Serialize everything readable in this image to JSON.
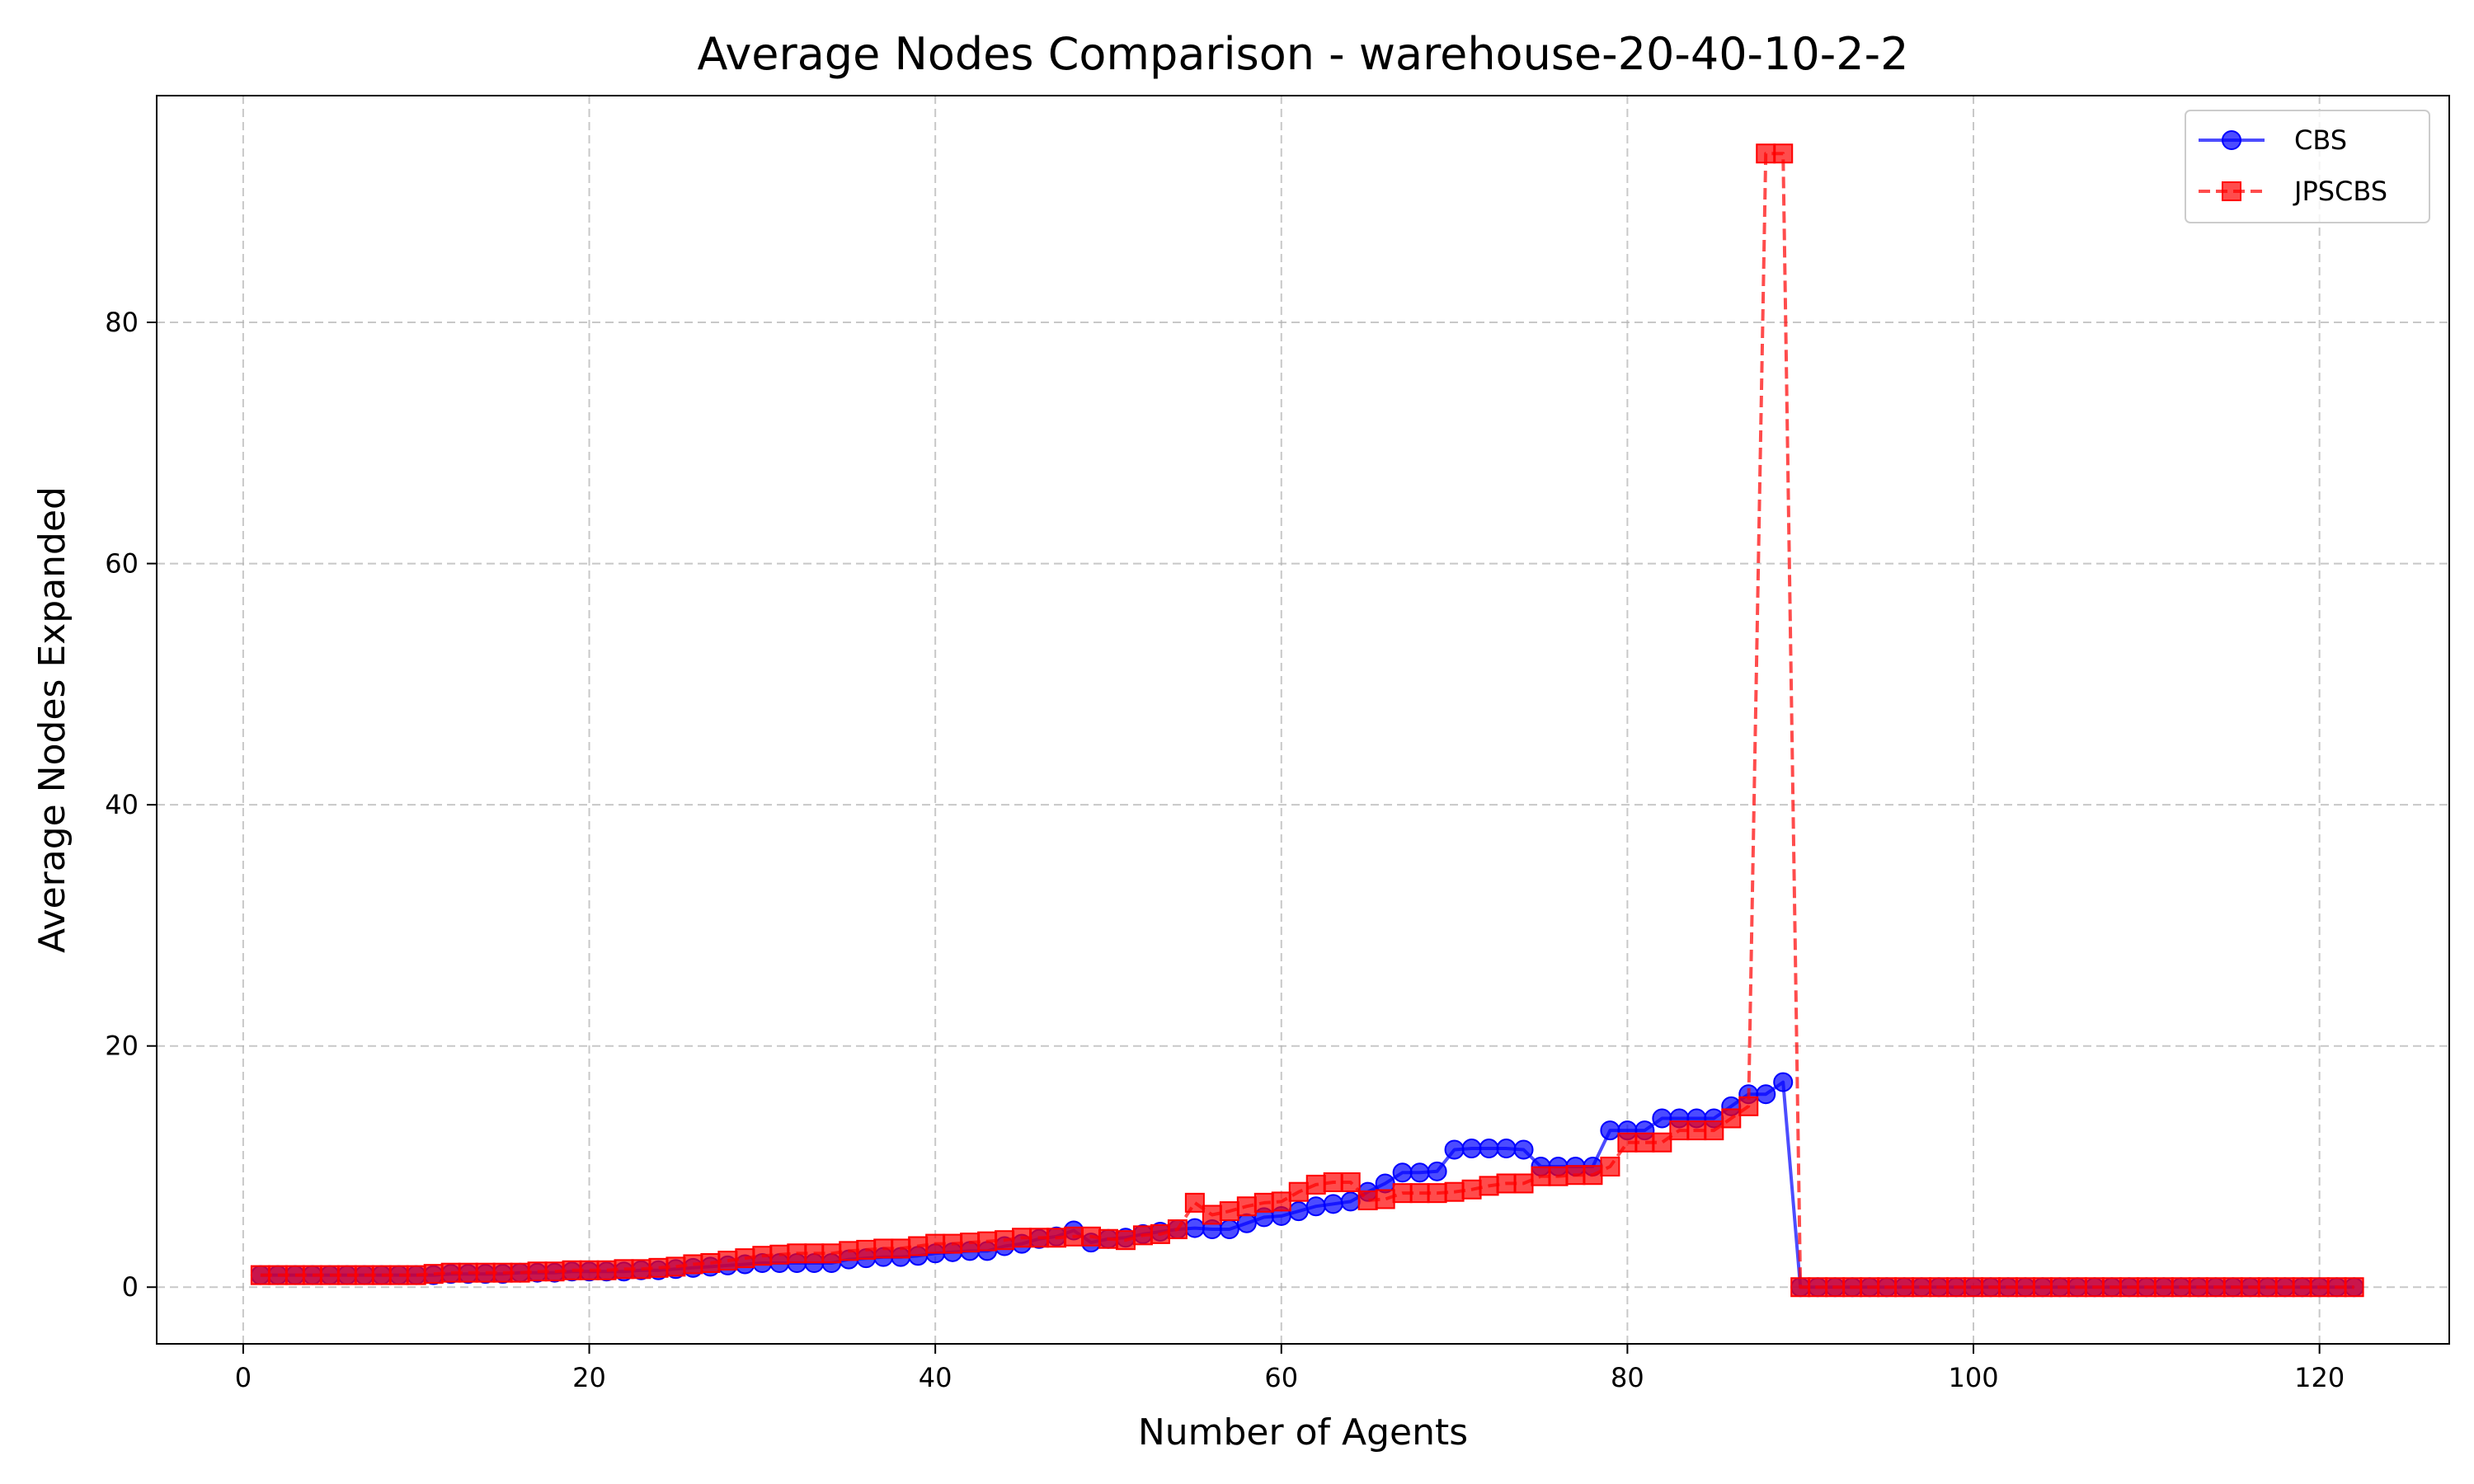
{
  "chart_data": {
    "type": "line",
    "title": "Average Nodes Comparison - warehouse-20-40-10-2-2",
    "xlabel": "Number of Agents",
    "ylabel": "Average Nodes Expanded",
    "xlim": [
      -5,
      127.5
    ],
    "ylim": [
      -4.7,
      98.8
    ],
    "xticks": [
      0,
      20,
      40,
      60,
      80,
      100,
      120
    ],
    "yticks": [
      0,
      20,
      40,
      60,
      80
    ],
    "grid": true,
    "legend_position": "top-right",
    "x_start": 1,
    "series": [
      {
        "name": "CBS",
        "color": "#0000ff",
        "marker": "circle",
        "line_style": "solid",
        "values": [
          1,
          1,
          1,
          1,
          1,
          1,
          1,
          1,
          1,
          1,
          1,
          1.1,
          1.1,
          1.1,
          1.1,
          1.2,
          1.2,
          1.2,
          1.3,
          1.3,
          1.3,
          1.3,
          1.4,
          1.4,
          1.5,
          1.6,
          1.7,
          1.8,
          1.9,
          2,
          2,
          2,
          2,
          2,
          2.3,
          2.4,
          2.5,
          2.5,
          2.6,
          2.8,
          2.9,
          3,
          3,
          3.4,
          3.6,
          4,
          4.2,
          4.7,
          3.7,
          4,
          4.1,
          4.4,
          4.6,
          4.8,
          4.9,
          4.8,
          4.8,
          5.3,
          5.8,
          5.9,
          6.3,
          6.7,
          6.9,
          7.1,
          7.9,
          8.6,
          9.5,
          9.5,
          9.6,
          11.4,
          11.5,
          11.5,
          11.5,
          11.4,
          10,
          10,
          10,
          10,
          13,
          13,
          13,
          14,
          14,
          14,
          14,
          15,
          16,
          16,
          17,
          0,
          0,
          0,
          0,
          0,
          0,
          0,
          0,
          0,
          0,
          0,
          0,
          0,
          0,
          0,
          0,
          0,
          0,
          0,
          0,
          0,
          0,
          0,
          0,
          0,
          0,
          0,
          0,
          0,
          0,
          0,
          0,
          0
        ]
      },
      {
        "name": "JPSCBS",
        "color": "#ff0000",
        "marker": "square",
        "line_style": "dashed",
        "values": [
          1,
          1,
          1,
          1,
          1,
          1,
          1,
          1,
          1,
          1,
          1.1,
          1.2,
          1.2,
          1.2,
          1.2,
          1.2,
          1.3,
          1.3,
          1.4,
          1.4,
          1.4,
          1.5,
          1.5,
          1.6,
          1.7,
          1.9,
          2,
          2.2,
          2.4,
          2.6,
          2.7,
          2.8,
          2.8,
          2.8,
          3,
          3.1,
          3.2,
          3.2,
          3.4,
          3.6,
          3.6,
          3.7,
          3.8,
          3.9,
          4.1,
          4.1,
          4.1,
          4.2,
          4.2,
          4,
          3.9,
          4.3,
          4.4,
          4.8,
          7,
          6,
          6.3,
          6.7,
          7,
          7.1,
          7.9,
          8.5,
          8.7,
          8.7,
          7.2,
          7.3,
          7.8,
          7.8,
          7.8,
          7.9,
          8.1,
          8.4,
          8.6,
          8.6,
          9.2,
          9.2,
          9.3,
          9.3,
          10,
          12,
          12,
          12,
          13,
          13,
          13,
          14,
          15,
          94,
          94,
          0,
          0,
          0,
          0,
          0,
          0,
          0,
          0,
          0,
          0,
          0,
          0,
          0,
          0,
          0,
          0,
          0,
          0,
          0,
          0,
          0,
          0,
          0,
          0,
          0,
          0,
          0,
          0,
          0,
          0,
          0,
          0,
          0
        ]
      }
    ]
  }
}
